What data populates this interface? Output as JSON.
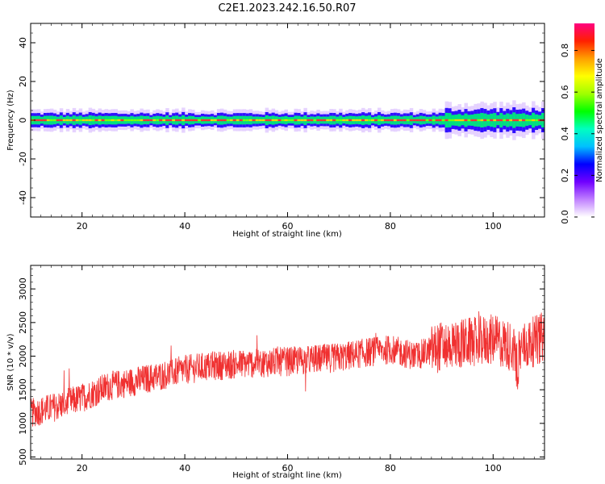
{
  "title": "C2E1.2023.242.16.50.R07",
  "chart_data": [
    {
      "type": "heatmap",
      "xlabel": "Height of straight line (km)",
      "ylabel": "Frequency (Hz)",
      "xlim": [
        10,
        110
      ],
      "ylim": [
        -50,
        50
      ],
      "xticks": [
        20,
        40,
        60,
        80,
        100
      ],
      "yticks": [
        40,
        20,
        0,
        -20,
        -40
      ],
      "colorbar": {
        "label": "Normalized spectral amplitude",
        "range": [
          0.0,
          0.93
        ],
        "ticks": [
          "0.0",
          "0.2",
          "0.4",
          "0.6",
          "0.8"
        ],
        "colors": [
          "#ffffff",
          "#c080ff",
          "#7000ff",
          "#0000ff",
          "#00c0ff",
          "#00ffc0",
          "#00ff00",
          "#a0ff00",
          "#ffff00",
          "#ffa000",
          "#ff2000",
          "#ff0080"
        ]
      },
      "band": {
        "center_hz": 0,
        "core_halfwidth_hz": 1,
        "outer_halfwidth_hz": 5,
        "peak_amplitude": 0.9
      }
    },
    {
      "type": "line",
      "xlabel": "Height of straight line (km)",
      "ylabel": "SNR (10 * v/v)",
      "xlim": [
        10,
        110
      ],
      "ylim": [
        470,
        3350
      ],
      "xticks": [
        20,
        40,
        60,
        80,
        100
      ],
      "yticks": [
        500,
        1000,
        1500,
        2000,
        2500,
        3000
      ],
      "color": "#f03030",
      "trend": {
        "x": [
          10,
          15,
          20,
          25,
          30,
          35,
          40,
          45,
          50,
          55,
          60,
          65,
          70,
          75,
          80,
          85,
          90,
          95,
          100,
          105,
          110
        ],
        "y": [
          1150,
          1250,
          1380,
          1550,
          1620,
          1700,
          1800,
          1850,
          1880,
          1900,
          1920,
          1950,
          1980,
          2050,
          2100,
          2000,
          2150,
          2200,
          2250,
          2100,
          2300
        ]
      }
    }
  ]
}
